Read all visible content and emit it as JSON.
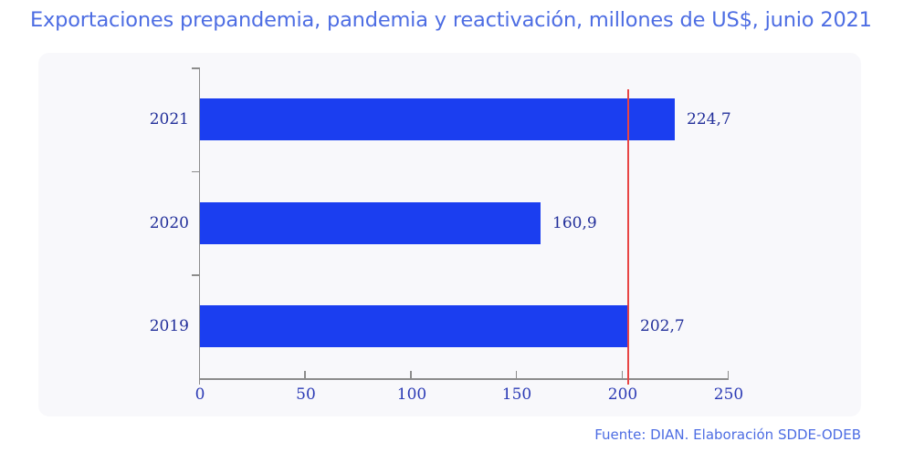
{
  "title": "Exportaciones prepandemia, pandemia y reactivación, millones de US$, junio 2021",
  "footer": "Fuente: DIAN. Elaboración SDDE-ODEB",
  "colors": {
    "title": "#4d6de3",
    "footer": "#4d6de3",
    "bar": "#1b3ef0",
    "reference_line": "#e84545",
    "axis": "#8c8c8c",
    "category_label": "#222f9a",
    "value_label": "#222f9a",
    "tick_label": "#2b3ab5",
    "panel_bg": "#f8f8fb",
    "page_bg": "#ffffff"
  },
  "chart_data": {
    "type": "bar",
    "orientation": "horizontal",
    "title": "Exportaciones prepandemia, pandemia y reactivación, millones de US$, junio 2021",
    "categories": [
      "2021",
      "2020",
      "2019"
    ],
    "values": [
      224.7,
      160.9,
      202.7
    ],
    "value_labels": [
      "224,7",
      "160,9",
      "202,7"
    ],
    "x_ticks": [
      0,
      50,
      100,
      150,
      200,
      250
    ],
    "x_tick_labels": [
      "0",
      "50",
      "100",
      "150",
      "200",
      "250"
    ],
    "xlim": [
      0,
      250
    ],
    "reference_line_x": 202.7,
    "grid": false,
    "legend": "none",
    "source_note": "Fuente: DIAN. Elaboración SDDE-ODEB"
  }
}
